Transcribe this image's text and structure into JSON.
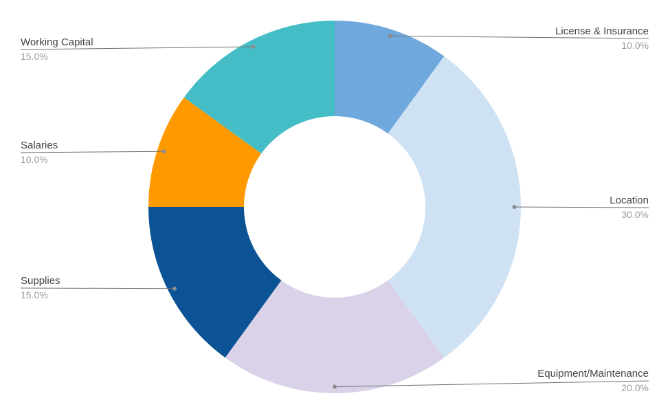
{
  "chart_data": {
    "type": "pie",
    "donut": true,
    "categories": [
      "License & Insurance",
      "Location",
      "Equipment/Maintenance",
      "Supplies",
      "Salaries",
      "Working Capital"
    ],
    "values": [
      10.0,
      30.0,
      20.0,
      15.0,
      10.0,
      15.0
    ],
    "value_labels": [
      "10.0%",
      "30.0%",
      "20.0%",
      "15.0%",
      "10.0%",
      "15.0%"
    ],
    "colors": [
      "#6fa8dc",
      "#cfe2f3",
      "#d9d2e9",
      "#0b5394",
      "#ff9900",
      "#45bdc6"
    ],
    "start_angle_deg": 0,
    "direction": "clockwise",
    "legend": "none",
    "slice_label_placement": "outside with leader lines"
  }
}
